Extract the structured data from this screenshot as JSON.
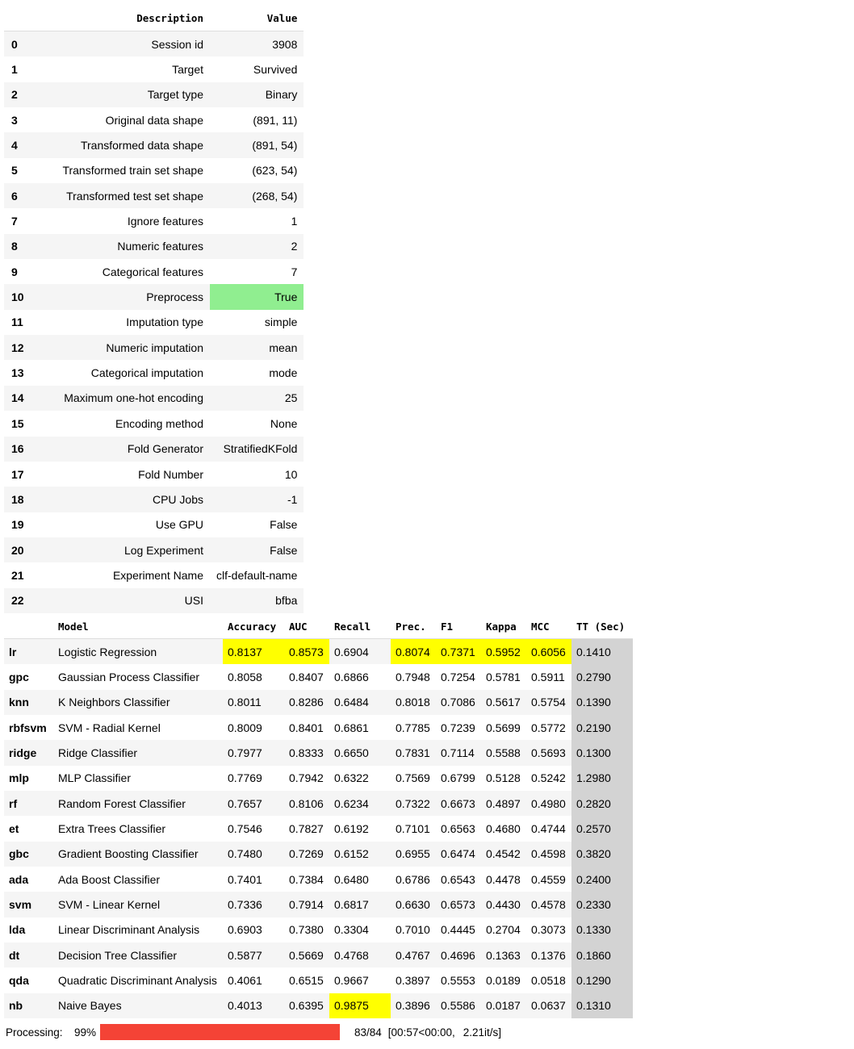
{
  "setup_table": {
    "headers": [
      "Description",
      "Value"
    ],
    "rows": [
      {
        "idx": "0",
        "desc": "Session id",
        "value": "3908"
      },
      {
        "idx": "1",
        "desc": "Target",
        "value": "Survived"
      },
      {
        "idx": "2",
        "desc": "Target type",
        "value": "Binary"
      },
      {
        "idx": "3",
        "desc": "Original data shape",
        "value": "(891, 11)"
      },
      {
        "idx": "4",
        "desc": "Transformed data shape",
        "value": "(891, 54)"
      },
      {
        "idx": "5",
        "desc": "Transformed train set shape",
        "value": "(623, 54)"
      },
      {
        "idx": "6",
        "desc": "Transformed test set shape",
        "value": "(268, 54)"
      },
      {
        "idx": "7",
        "desc": "Ignore features",
        "value": "1"
      },
      {
        "idx": "8",
        "desc": "Numeric features",
        "value": "2"
      },
      {
        "idx": "9",
        "desc": "Categorical features",
        "value": "7"
      },
      {
        "idx": "10",
        "desc": "Preprocess",
        "value": "True"
      },
      {
        "idx": "11",
        "desc": "Imputation type",
        "value": "simple"
      },
      {
        "idx": "12",
        "desc": "Numeric imputation",
        "value": "mean"
      },
      {
        "idx": "13",
        "desc": "Categorical imputation",
        "value": "mode"
      },
      {
        "idx": "14",
        "desc": "Maximum one-hot encoding",
        "value": "25"
      },
      {
        "idx": "15",
        "desc": "Encoding method",
        "value": "None"
      },
      {
        "idx": "16",
        "desc": "Fold Generator",
        "value": "StratifiedKFold"
      },
      {
        "idx": "17",
        "desc": "Fold Number",
        "value": "10"
      },
      {
        "idx": "18",
        "desc": "CPU Jobs",
        "value": "-1"
      },
      {
        "idx": "19",
        "desc": "Use GPU",
        "value": "False"
      },
      {
        "idx": "20",
        "desc": "Log Experiment",
        "value": "False"
      },
      {
        "idx": "21",
        "desc": "Experiment Name",
        "value": "clf-default-name"
      },
      {
        "idx": "22",
        "desc": "USI",
        "value": "bfba"
      }
    ],
    "highlight_color": "#90ee90"
  },
  "models_table": {
    "headers": [
      "Model",
      "Accuracy",
      "AUC",
      "Recall",
      "Prec.",
      "F1",
      "Kappa",
      "MCC",
      "TT (Sec)"
    ],
    "rows": [
      {
        "abbr": "lr",
        "model": "Logistic Regression",
        "accuracy": "0.8137",
        "auc": "0.8573",
        "recall": "0.6904",
        "prec": "0.8074",
        "f1": "0.7371",
        "kappa": "0.5952",
        "mcc": "0.6056",
        "tt": "0.1410"
      },
      {
        "abbr": "gpc",
        "model": "Gaussian Process Classifier",
        "accuracy": "0.8058",
        "auc": "0.8407",
        "recall": "0.6866",
        "prec": "0.7948",
        "f1": "0.7254",
        "kappa": "0.5781",
        "mcc": "0.5911",
        "tt": "0.2790"
      },
      {
        "abbr": "knn",
        "model": "K Neighbors Classifier",
        "accuracy": "0.8011",
        "auc": "0.8286",
        "recall": "0.6484",
        "prec": "0.8018",
        "f1": "0.7086",
        "kappa": "0.5617",
        "mcc": "0.5754",
        "tt": "0.1390"
      },
      {
        "abbr": "rbfsvm",
        "model": "SVM - Radial Kernel",
        "accuracy": "0.8009",
        "auc": "0.8401",
        "recall": "0.6861",
        "prec": "0.7785",
        "f1": "0.7239",
        "kappa": "0.5699",
        "mcc": "0.5772",
        "tt": "0.2190"
      },
      {
        "abbr": "ridge",
        "model": "Ridge Classifier",
        "accuracy": "0.7977",
        "auc": "0.8333",
        "recall": "0.6650",
        "prec": "0.7831",
        "f1": "0.7114",
        "kappa": "0.5588",
        "mcc": "0.5693",
        "tt": "0.1300"
      },
      {
        "abbr": "mlp",
        "model": "MLP Classifier",
        "accuracy": "0.7769",
        "auc": "0.7942",
        "recall": "0.6322",
        "prec": "0.7569",
        "f1": "0.6799",
        "kappa": "0.5128",
        "mcc": "0.5242",
        "tt": "1.2980"
      },
      {
        "abbr": "rf",
        "model": "Random Forest Classifier",
        "accuracy": "0.7657",
        "auc": "0.8106",
        "recall": "0.6234",
        "prec": "0.7322",
        "f1": "0.6673",
        "kappa": "0.4897",
        "mcc": "0.4980",
        "tt": "0.2820"
      },
      {
        "abbr": "et",
        "model": "Extra Trees Classifier",
        "accuracy": "0.7546",
        "auc": "0.7827",
        "recall": "0.6192",
        "prec": "0.7101",
        "f1": "0.6563",
        "kappa": "0.4680",
        "mcc": "0.4744",
        "tt": "0.2570"
      },
      {
        "abbr": "gbc",
        "model": "Gradient Boosting Classifier",
        "accuracy": "0.7480",
        "auc": "0.7269",
        "recall": "0.6152",
        "prec": "0.6955",
        "f1": "0.6474",
        "kappa": "0.4542",
        "mcc": "0.4598",
        "tt": "0.3820"
      },
      {
        "abbr": "ada",
        "model": "Ada Boost Classifier",
        "accuracy": "0.7401",
        "auc": "0.7384",
        "recall": "0.6480",
        "prec": "0.6786",
        "f1": "0.6543",
        "kappa": "0.4478",
        "mcc": "0.4559",
        "tt": "0.2400"
      },
      {
        "abbr": "svm",
        "model": "SVM - Linear Kernel",
        "accuracy": "0.7336",
        "auc": "0.7914",
        "recall": "0.6817",
        "prec": "0.6630",
        "f1": "0.6573",
        "kappa": "0.4430",
        "mcc": "0.4578",
        "tt": "0.2330"
      },
      {
        "abbr": "lda",
        "model": "Linear Discriminant Analysis",
        "accuracy": "0.6903",
        "auc": "0.7380",
        "recall": "0.3304",
        "prec": "0.7010",
        "f1": "0.4445",
        "kappa": "0.2704",
        "mcc": "0.3073",
        "tt": "0.1330"
      },
      {
        "abbr": "dt",
        "model": "Decision Tree Classifier",
        "accuracy": "0.5877",
        "auc": "0.5669",
        "recall": "0.4768",
        "prec": "0.4767",
        "f1": "0.4696",
        "kappa": "0.1363",
        "mcc": "0.1376",
        "tt": "0.1860"
      },
      {
        "abbr": "qda",
        "model": "Quadratic Discriminant Analysis",
        "accuracy": "0.4061",
        "auc": "0.6515",
        "recall": "0.9667",
        "prec": "0.3897",
        "f1": "0.5553",
        "kappa": "0.0189",
        "mcc": "0.0518",
        "tt": "0.1290"
      },
      {
        "abbr": "nb",
        "model": "Naive Bayes",
        "accuracy": "0.4013",
        "auc": "0.6395",
        "recall": "0.9875",
        "prec": "0.3896",
        "f1": "0.5586",
        "kappa": "0.0187",
        "mcc": "0.0637",
        "tt": "0.1310"
      }
    ],
    "highlight_color": "#ffff00",
    "tt_column_color": "#d3d3d3"
  },
  "progress": {
    "label": "Processing:",
    "percent_text": "99%",
    "fraction": 0.99,
    "count_text": "83/84",
    "timing_text": "[00:57<00:00,",
    "rate_text": "2.21it/s]",
    "bar_color": "#f44336"
  }
}
